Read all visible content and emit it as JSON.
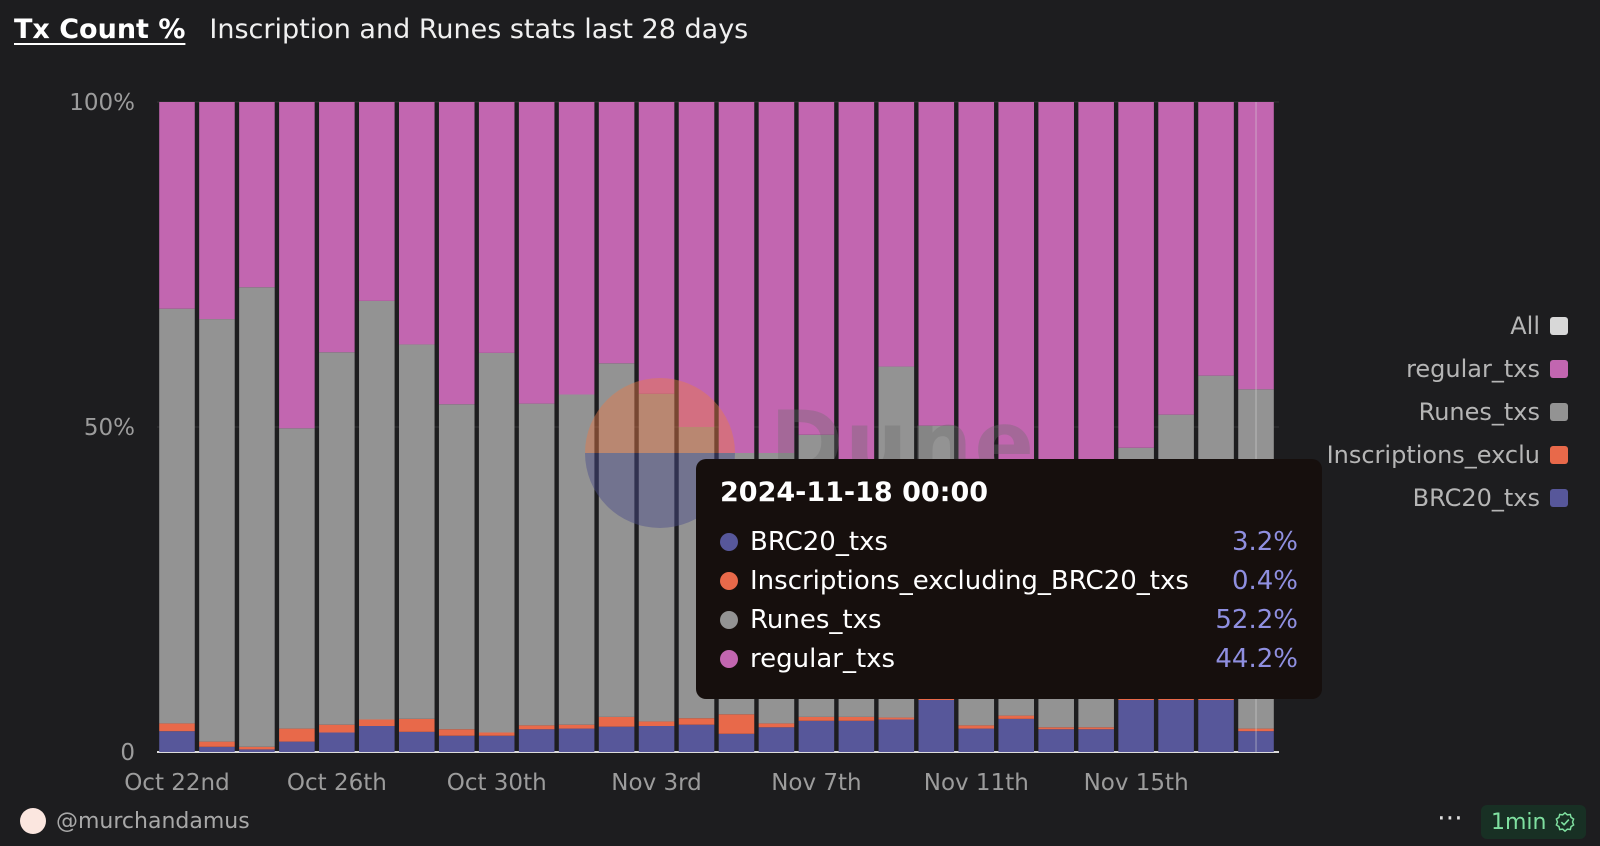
{
  "header": {
    "tab_title": "Tx Count %",
    "chart_title": "Inscription and Runes stats last 28 days"
  },
  "legend": [
    {
      "label": "All",
      "color": "#d8d8d8"
    },
    {
      "label": "regular_txs",
      "color": "#c266b0"
    },
    {
      "label": "Runes_txs",
      "color": "#939393"
    },
    {
      "label": "Inscriptions_exclu",
      "color": "#e8694a"
    },
    {
      "label": "BRC20_txs",
      "color": "#57579a"
    }
  ],
  "tooltip": {
    "date": "2024-11-18 00:00",
    "rows": [
      {
        "name": "BRC20_txs",
        "value": "3.2%",
        "color": "#57579a"
      },
      {
        "name": "Inscriptions_excluding_BRC20_txs",
        "value": "0.4%",
        "color": "#e8694a"
      },
      {
        "name": "Runes_txs",
        "value": "52.2%",
        "color": "#939393"
      },
      {
        "name": "regular_txs",
        "value": "44.2%",
        "color": "#c266b0"
      }
    ]
  },
  "watermark": {
    "text": "Dune"
  },
  "footer": {
    "author": "@murchandamus",
    "more_icon": "⋯",
    "refresh_label": "1min",
    "refresh_icon": "check-badge-icon"
  },
  "chart_data": {
    "type": "bar",
    "stacked": true,
    "normalized": true,
    "x_tick_labels": [
      "Oct 22nd",
      "Oct 26th",
      "Oct 30th",
      "Nov 3rd",
      "Nov 7th",
      "Nov 11th",
      "Nov 15th"
    ],
    "x_tick_index": [
      0,
      4,
      8,
      12,
      16,
      20,
      24
    ],
    "y_tick_labels": [
      "100%",
      "50%",
      "0"
    ],
    "y_tick_values": [
      100,
      50,
      0
    ],
    "ylim": [
      0,
      100
    ],
    "highlighted_index": 27,
    "categories": [
      "2024-10-22",
      "2024-10-23",
      "2024-10-24",
      "2024-10-25",
      "2024-10-26",
      "2024-10-27",
      "2024-10-28",
      "2024-10-29",
      "2024-10-30",
      "2024-10-31",
      "2024-11-01",
      "2024-11-02",
      "2024-11-03",
      "2024-11-04",
      "2024-11-05",
      "2024-11-06",
      "2024-11-07",
      "2024-11-08",
      "2024-11-09",
      "2024-11-10",
      "2024-11-11",
      "2024-11-12",
      "2024-11-13",
      "2024-11-14",
      "2024-11-15",
      "2024-11-16",
      "2024-11-17",
      "2024-11-18"
    ],
    "series": [
      {
        "name": "BRC20_txs",
        "color": "#57579a",
        "values": [
          3.2,
          0.8,
          0.4,
          1.6,
          3.0,
          4.0,
          3.1,
          2.5,
          2.5,
          3.5,
          3.6,
          3.9,
          4.0,
          4.2,
          2.8,
          3.8,
          4.8,
          4.8,
          5.0,
          8.0,
          3.6,
          5.1,
          3.5,
          3.5,
          8.0,
          8.0,
          8.0,
          3.2
        ]
      },
      {
        "name": "Inscriptions_excluding_BRC20_txs",
        "color": "#e8694a",
        "values": [
          1.2,
          0.8,
          0.4,
          2.0,
          1.2,
          1.0,
          2.0,
          1.0,
          0.5,
          0.6,
          0.6,
          1.5,
          0.7,
          1.0,
          3.0,
          0.6,
          0.6,
          0.6,
          0.3,
          0.2,
          0.5,
          0.5,
          0.3,
          0.3,
          0.2,
          0.2,
          0.2,
          0.4
        ]
      },
      {
        "name": "Runes_txs",
        "color": "#939393",
        "values": [
          63.8,
          65.0,
          70.7,
          46.2,
          57.3,
          64.4,
          57.6,
          50.0,
          58.4,
          49.5,
          50.8,
          54.4,
          50.4,
          44.8,
          40.2,
          41.6,
          43.4,
          39.0,
          54.0,
          42.0,
          41.0,
          39.0,
          41.0,
          41.0,
          38.6,
          43.7,
          49.7,
          52.2
        ]
      },
      {
        "name": "regular_txs",
        "color": "#c266b0",
        "values": [
          31.8,
          33.4,
          28.5,
          50.2,
          38.5,
          30.6,
          37.3,
          46.5,
          38.6,
          46.4,
          45.0,
          40.2,
          44.9,
          50.0,
          54.0,
          54.0,
          51.2,
          55.6,
          40.7,
          49.8,
          54.9,
          55.4,
          55.2,
          55.2,
          53.2,
          48.1,
          42.1,
          44.2
        ]
      }
    ]
  }
}
